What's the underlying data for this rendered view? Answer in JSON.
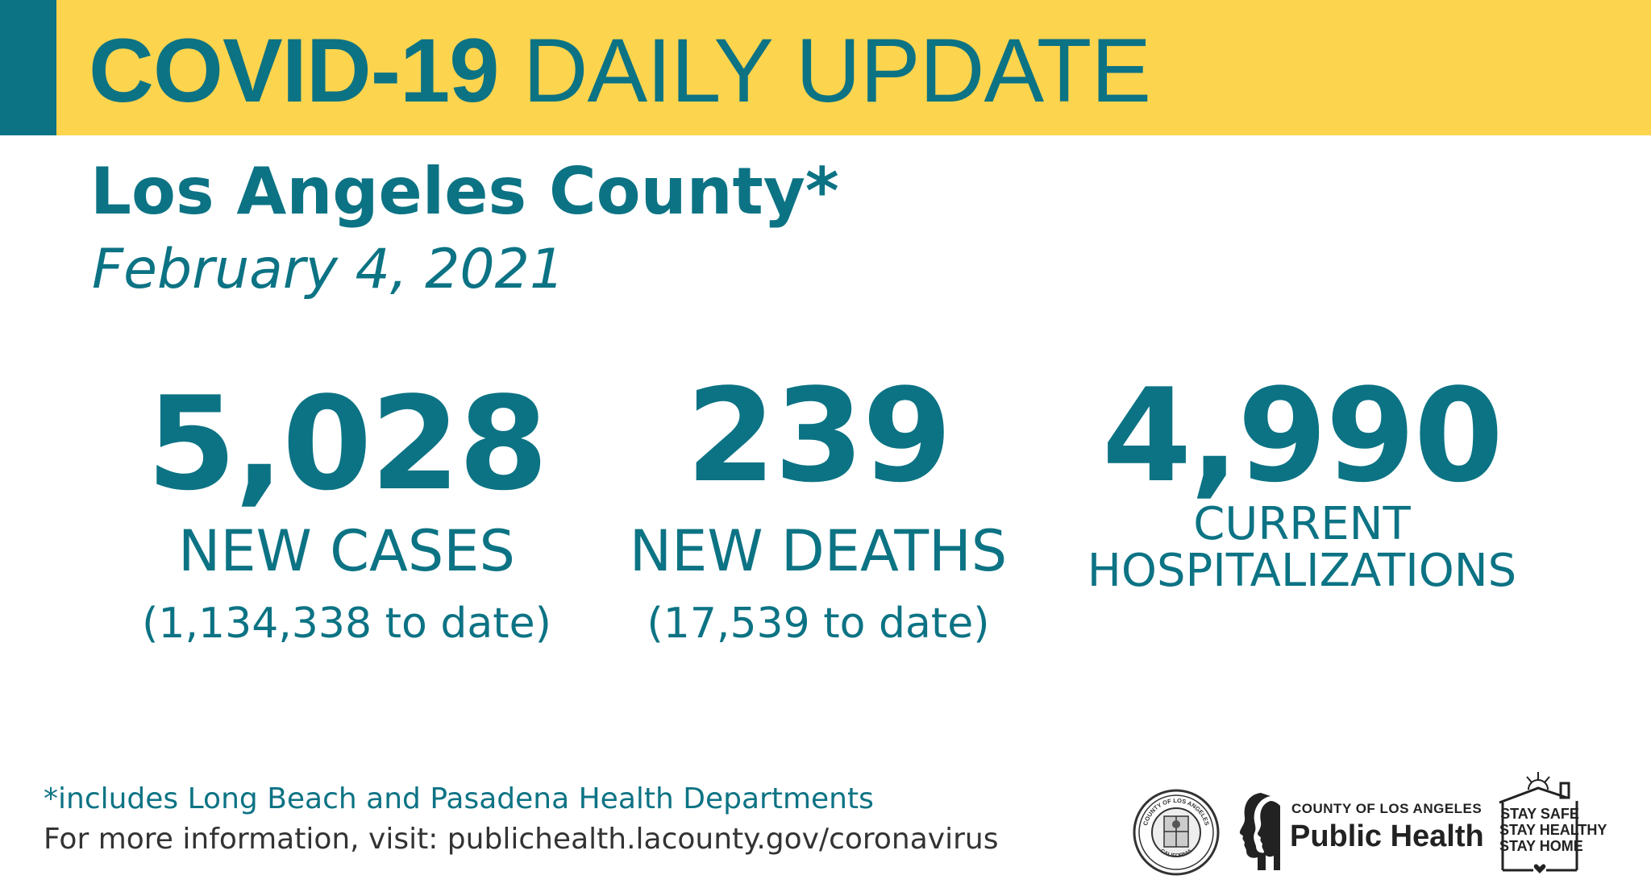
{
  "header": {
    "title_bold": "COVID-19",
    "title_regular": "DAILY UPDATE"
  },
  "subtitle": {
    "county": "Los Angeles County*",
    "date": "February 4, 2021"
  },
  "stats": {
    "cases": {
      "number": "5,028",
      "label": "NEW CASES",
      "to_date": "(1,134,338 to date)"
    },
    "deaths": {
      "number": "239",
      "label": "NEW DEATHS",
      "to_date": "(17,539 to date)"
    },
    "hospitalizations": {
      "number": "4,990",
      "label_line1": "CURRENT",
      "label_line2": "HOSPITALIZATIONS"
    }
  },
  "footer": {
    "note": "*includes Long Beach and Pasadena Health Departments",
    "info": "For more information, visit: publichealth.lacounty.gov/coronavirus"
  },
  "logos": {
    "seal_text_top": "COUNTY OF LOS ANGELES",
    "seal_text_bottom": "CALIFORNIA",
    "public_health_small": "COUNTY OF LOS ANGELES",
    "public_health_big": "Public Health",
    "stay_line1": "STAY SAFE",
    "stay_line2": "STAY HEALTHY",
    "stay_line3": "STAY HOME"
  },
  "colors": {
    "teal": "#0c7384",
    "yellow": "#fdd44e",
    "dark_text": "#333333"
  }
}
